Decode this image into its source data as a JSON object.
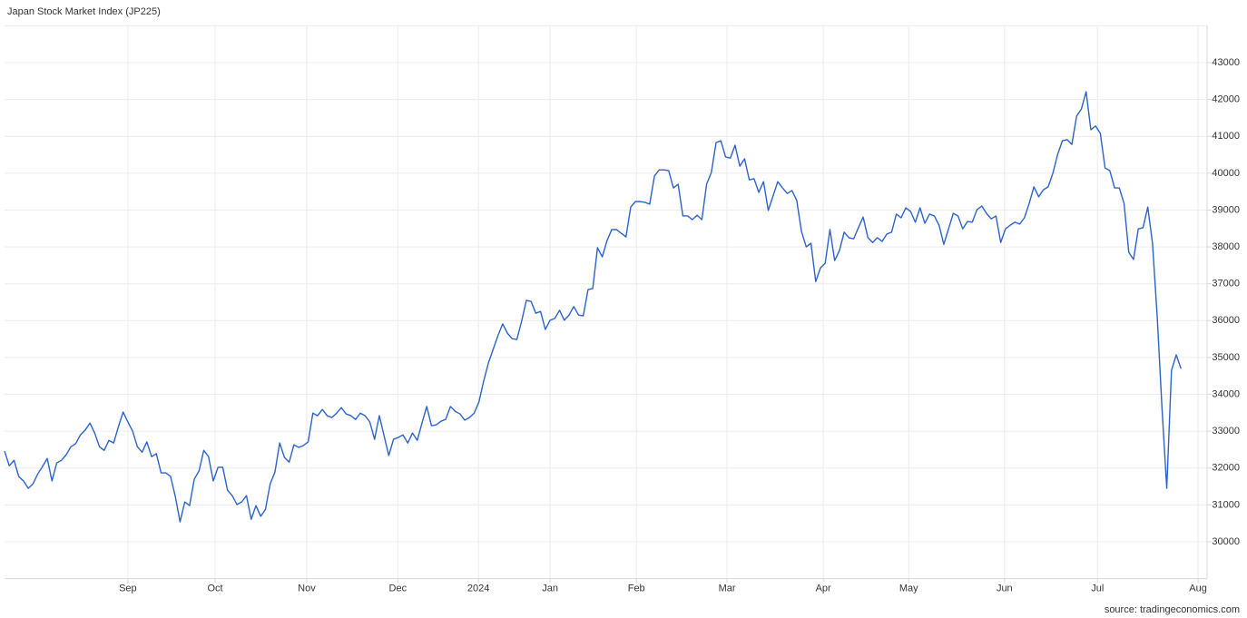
{
  "chart_data": {
    "type": "line",
    "title": "Japan Stock Market Index (JP225)",
    "source": "source: tradingeconomics.com",
    "color": "#2c62cc",
    "values": [
      32460,
      32060,
      32210,
      31770,
      31650,
      31450,
      31570,
      31840,
      32040,
      32260,
      31650,
      32140,
      32210,
      32360,
      32580,
      32660,
      32900,
      33030,
      33220,
      32950,
      32580,
      32480,
      32750,
      32680,
      33120,
      33520,
      33250,
      33000,
      32580,
      32430,
      32710,
      32310,
      32390,
      31870,
      31870,
      31770,
      31230,
      30540,
      31080,
      30980,
      31700,
      31920,
      32480,
      32310,
      31650,
      32020,
      32020,
      31400,
      31250,
      31010,
      31080,
      31250,
      30610,
      30980,
      30690,
      30880,
      31570,
      31890,
      32680,
      32290,
      32160,
      32630,
      32560,
      32610,
      32710,
      33490,
      33420,
      33590,
      33420,
      33370,
      33490,
      33640,
      33470,
      33420,
      33320,
      33490,
      33420,
      33250,
      32780,
      33420,
      32880,
      32340,
      32780,
      32830,
      32900,
      32680,
      32950,
      32750,
      33220,
      33670,
      33150,
      33170,
      33270,
      33320,
      33670,
      33540,
      33470,
      33300,
      33370,
      33490,
      33790,
      34360,
      34850,
      35220,
      35590,
      35910,
      35660,
      35510,
      35490,
      35980,
      36550,
      36520,
      36200,
      36250,
      35760,
      36010,
      36060,
      36280,
      36010,
      36150,
      36380,
      36150,
      36130,
      36840,
      36870,
      37980,
      37730,
      38170,
      38470,
      38470,
      38370,
      38270,
      39080,
      39230,
      39230,
      39210,
      39160,
      39920,
      40090,
      40090,
      40070,
      39600,
      39700,
      38840,
      38840,
      38740,
      38860,
      38740,
      39700,
      40020,
      40830,
      40880,
      40440,
      40410,
      40760,
      40190,
      40390,
      39820,
      39850,
      39480,
      39770,
      38990,
      39380,
      39770,
      39600,
      39450,
      39530,
      39260,
      38420,
      38000,
      38100,
      37060,
      37430,
      37560,
      38470,
      37630,
      37900,
      38400,
      38250,
      38220,
      38520,
      38810,
      38250,
      38120,
      38250,
      38150,
      38350,
      38400,
      38890,
      38790,
      39060,
      38960,
      38670,
      39060,
      38640,
      38890,
      38840,
      38590,
      38070,
      38490,
      38910,
      38840,
      38490,
      38690,
      38670,
      39010,
      39110,
      38910,
      38760,
      38840,
      38120,
      38490,
      38590,
      38670,
      38620,
      38790,
      39180,
      39630,
      39360,
      39550,
      39630,
      40000,
      40510,
      40880,
      40910,
      40780,
      41550,
      41740,
      42210,
      41180,
      41280,
      41080,
      40140,
      40070,
      39600,
      39600,
      39180,
      37850,
      37660,
      38490,
      38520,
      39080,
      38100,
      36080,
      33620,
      31450,
      34650,
      35070,
      34700
    ],
    "xlim": [
      0,
      253.5
    ],
    "xticks": [
      {
        "value": 26.0,
        "label": "Sep"
      },
      {
        "value": 44.4,
        "label": "Oct"
      },
      {
        "value": 63.7,
        "label": "Nov"
      },
      {
        "value": 82.9,
        "label": "Dec"
      },
      {
        "value": 99.9,
        "label": "2024"
      },
      {
        "value": 115.0,
        "label": "Jan"
      },
      {
        "value": 133.2,
        "label": "Feb"
      },
      {
        "value": 152.3,
        "label": "Mar"
      },
      {
        "value": 172.6,
        "label": "Apr"
      },
      {
        "value": 190.6,
        "label": "May"
      },
      {
        "value": 210.8,
        "label": "Jun"
      },
      {
        "value": 230.4,
        "label": "Jul"
      },
      {
        "value": 251.6,
        "label": "Aug"
      }
    ],
    "ylim": [
      29000,
      44000
    ],
    "yticks": [
      30000,
      31000,
      32000,
      33000,
      34000,
      35000,
      36000,
      37000,
      38000,
      39000,
      40000,
      41000,
      42000,
      43000
    ],
    "grid": true
  }
}
